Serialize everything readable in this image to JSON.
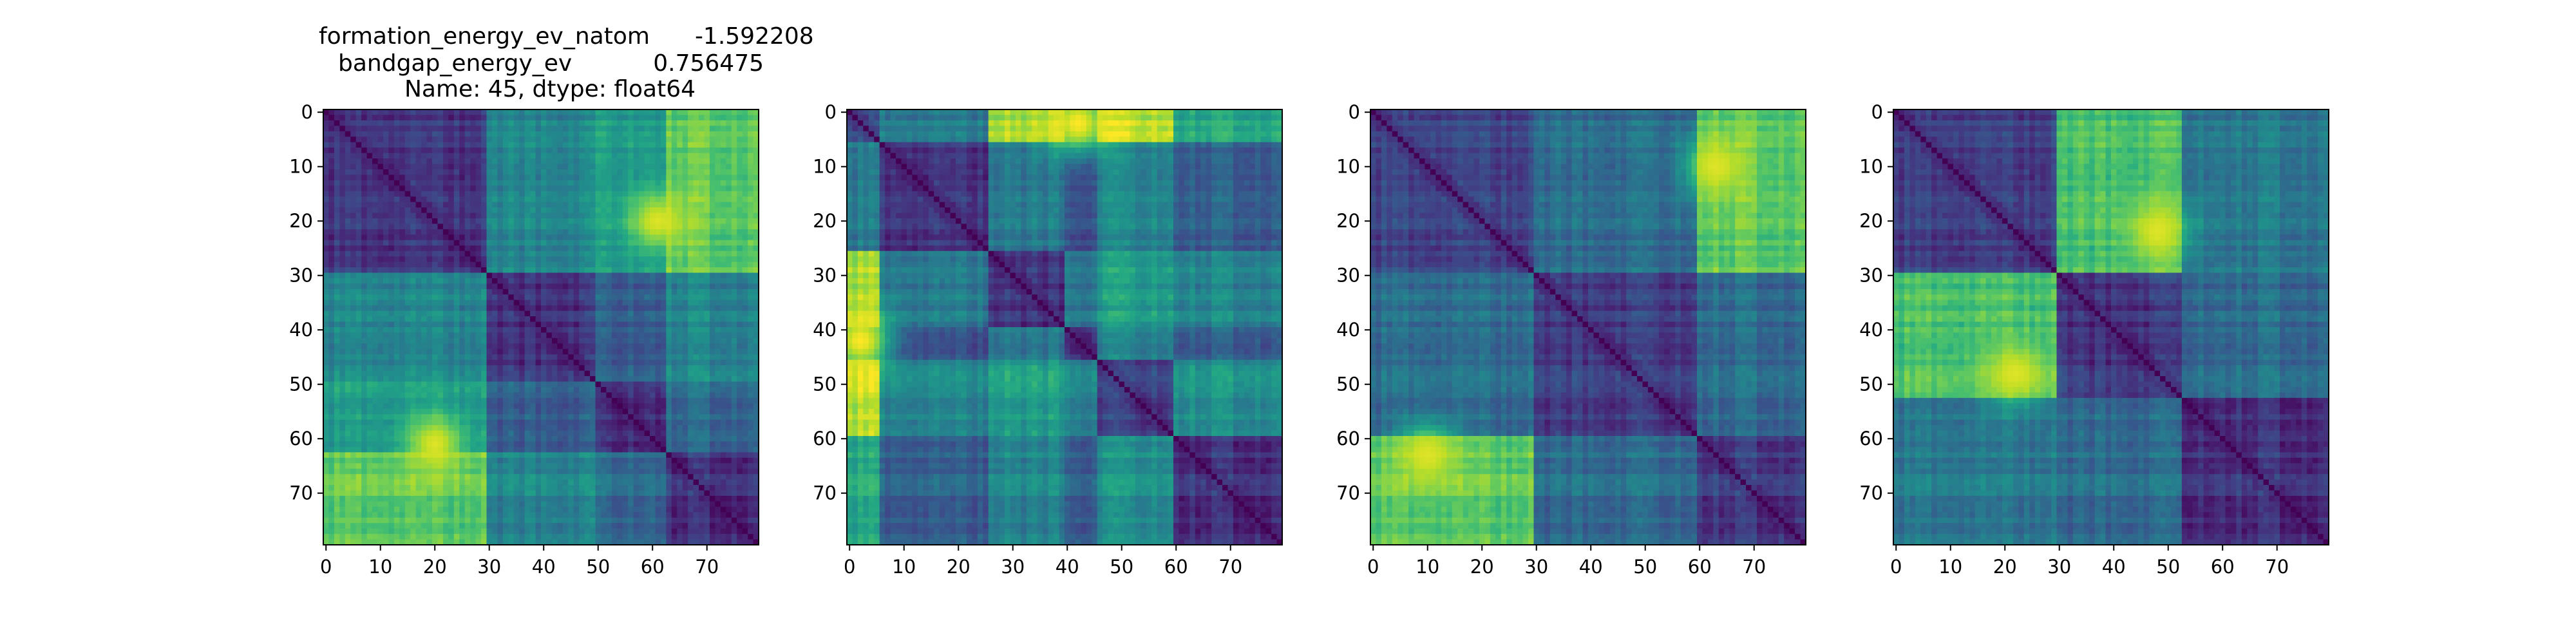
{
  "title": {
    "line1_label": "formation_energy_ev_natom",
    "line1_value": "-1.592208",
    "line2_label": "bandgap_energy_ev",
    "line2_value": "0.756475",
    "line3": "Name: 45, dtype: float64"
  },
  "chart_data": [
    {
      "type": "heatmap",
      "colormap": "viridis",
      "size": 80,
      "xticks": [
        0,
        10,
        20,
        30,
        40,
        50,
        60,
        70
      ],
      "yticks": [
        0,
        10,
        20,
        30,
        40,
        50,
        60,
        70
      ],
      "xlim": [
        0,
        79
      ],
      "ylim": [
        79,
        0
      ],
      "block_boundaries": [
        0,
        30,
        50,
        63,
        80
      ],
      "block_levels": [
        [
          0.15,
          0.45,
          0.55,
          0.75
        ],
        [
          0.45,
          0.15,
          0.3,
          0.45
        ],
        [
          0.55,
          0.3,
          0.15,
          0.35
        ],
        [
          0.75,
          0.45,
          0.35,
          0.15
        ]
      ],
      "hotspots": [
        {
          "row": 20,
          "col": 61,
          "value": 0.95
        },
        {
          "row": 61,
          "col": 20,
          "value": 0.95
        }
      ],
      "diagonal_value": 0.0
    },
    {
      "type": "heatmap",
      "colormap": "viridis",
      "size": 80,
      "xticks": [
        0,
        10,
        20,
        30,
        40,
        50,
        60,
        70
      ],
      "yticks": [
        0,
        10,
        20,
        30,
        40,
        50,
        60,
        70
      ],
      "xlim": [
        0,
        79
      ],
      "ylim": [
        79,
        0
      ],
      "block_boundaries": [
        0,
        6,
        26,
        40,
        46,
        60,
        80
      ],
      "block_levels": [
        [
          0.25,
          0.4,
          0.85,
          0.4,
          0.9,
          0.6
        ],
        [
          0.4,
          0.15,
          0.4,
          0.25,
          0.45,
          0.3
        ],
        [
          0.85,
          0.4,
          0.15,
          0.4,
          0.55,
          0.45
        ],
        [
          0.4,
          0.25,
          0.4,
          0.15,
          0.45,
          0.3
        ],
        [
          0.9,
          0.45,
          0.55,
          0.45,
          0.2,
          0.5
        ],
        [
          0.6,
          0.3,
          0.45,
          0.3,
          0.5,
          0.15
        ]
      ],
      "hotspots": [
        {
          "row": 42,
          "col": 2,
          "value": 1.0
        },
        {
          "row": 2,
          "col": 42,
          "value": 1.0
        }
      ],
      "diagonal_value": 0.0
    },
    {
      "type": "heatmap",
      "colormap": "viridis",
      "size": 80,
      "xticks": [
        0,
        10,
        20,
        30,
        40,
        50,
        60,
        70
      ],
      "yticks": [
        0,
        10,
        20,
        30,
        40,
        50,
        60,
        70
      ],
      "xlim": [
        0,
        79
      ],
      "ylim": [
        79,
        0
      ],
      "block_boundaries": [
        0,
        30,
        60,
        80
      ],
      "block_levels": [
        [
          0.2,
          0.35,
          0.75
        ],
        [
          0.35,
          0.18,
          0.35
        ],
        [
          0.75,
          0.35,
          0.18
        ]
      ],
      "hotspots": [
        {
          "row": 10,
          "col": 63,
          "value": 0.95
        },
        {
          "row": 63,
          "col": 10,
          "value": 0.95
        }
      ],
      "diagonal_value": 0.0
    },
    {
      "type": "heatmap",
      "colormap": "viridis",
      "size": 80,
      "xticks": [
        0,
        10,
        20,
        30,
        40,
        50,
        60,
        70
      ],
      "yticks": [
        0,
        10,
        20,
        30,
        40,
        50,
        60,
        70
      ],
      "xlim": [
        0,
        79
      ],
      "ylim": [
        79,
        0
      ],
      "block_boundaries": [
        0,
        30,
        53,
        80
      ],
      "block_levels": [
        [
          0.18,
          0.7,
          0.4
        ],
        [
          0.7,
          0.15,
          0.35
        ],
        [
          0.4,
          0.35,
          0.15
        ]
      ],
      "hotspots": [
        {
          "row": 22,
          "col": 48,
          "value": 0.95
        },
        {
          "row": 48,
          "col": 22,
          "value": 0.95
        }
      ],
      "diagonal_value": 0.0
    }
  ]
}
